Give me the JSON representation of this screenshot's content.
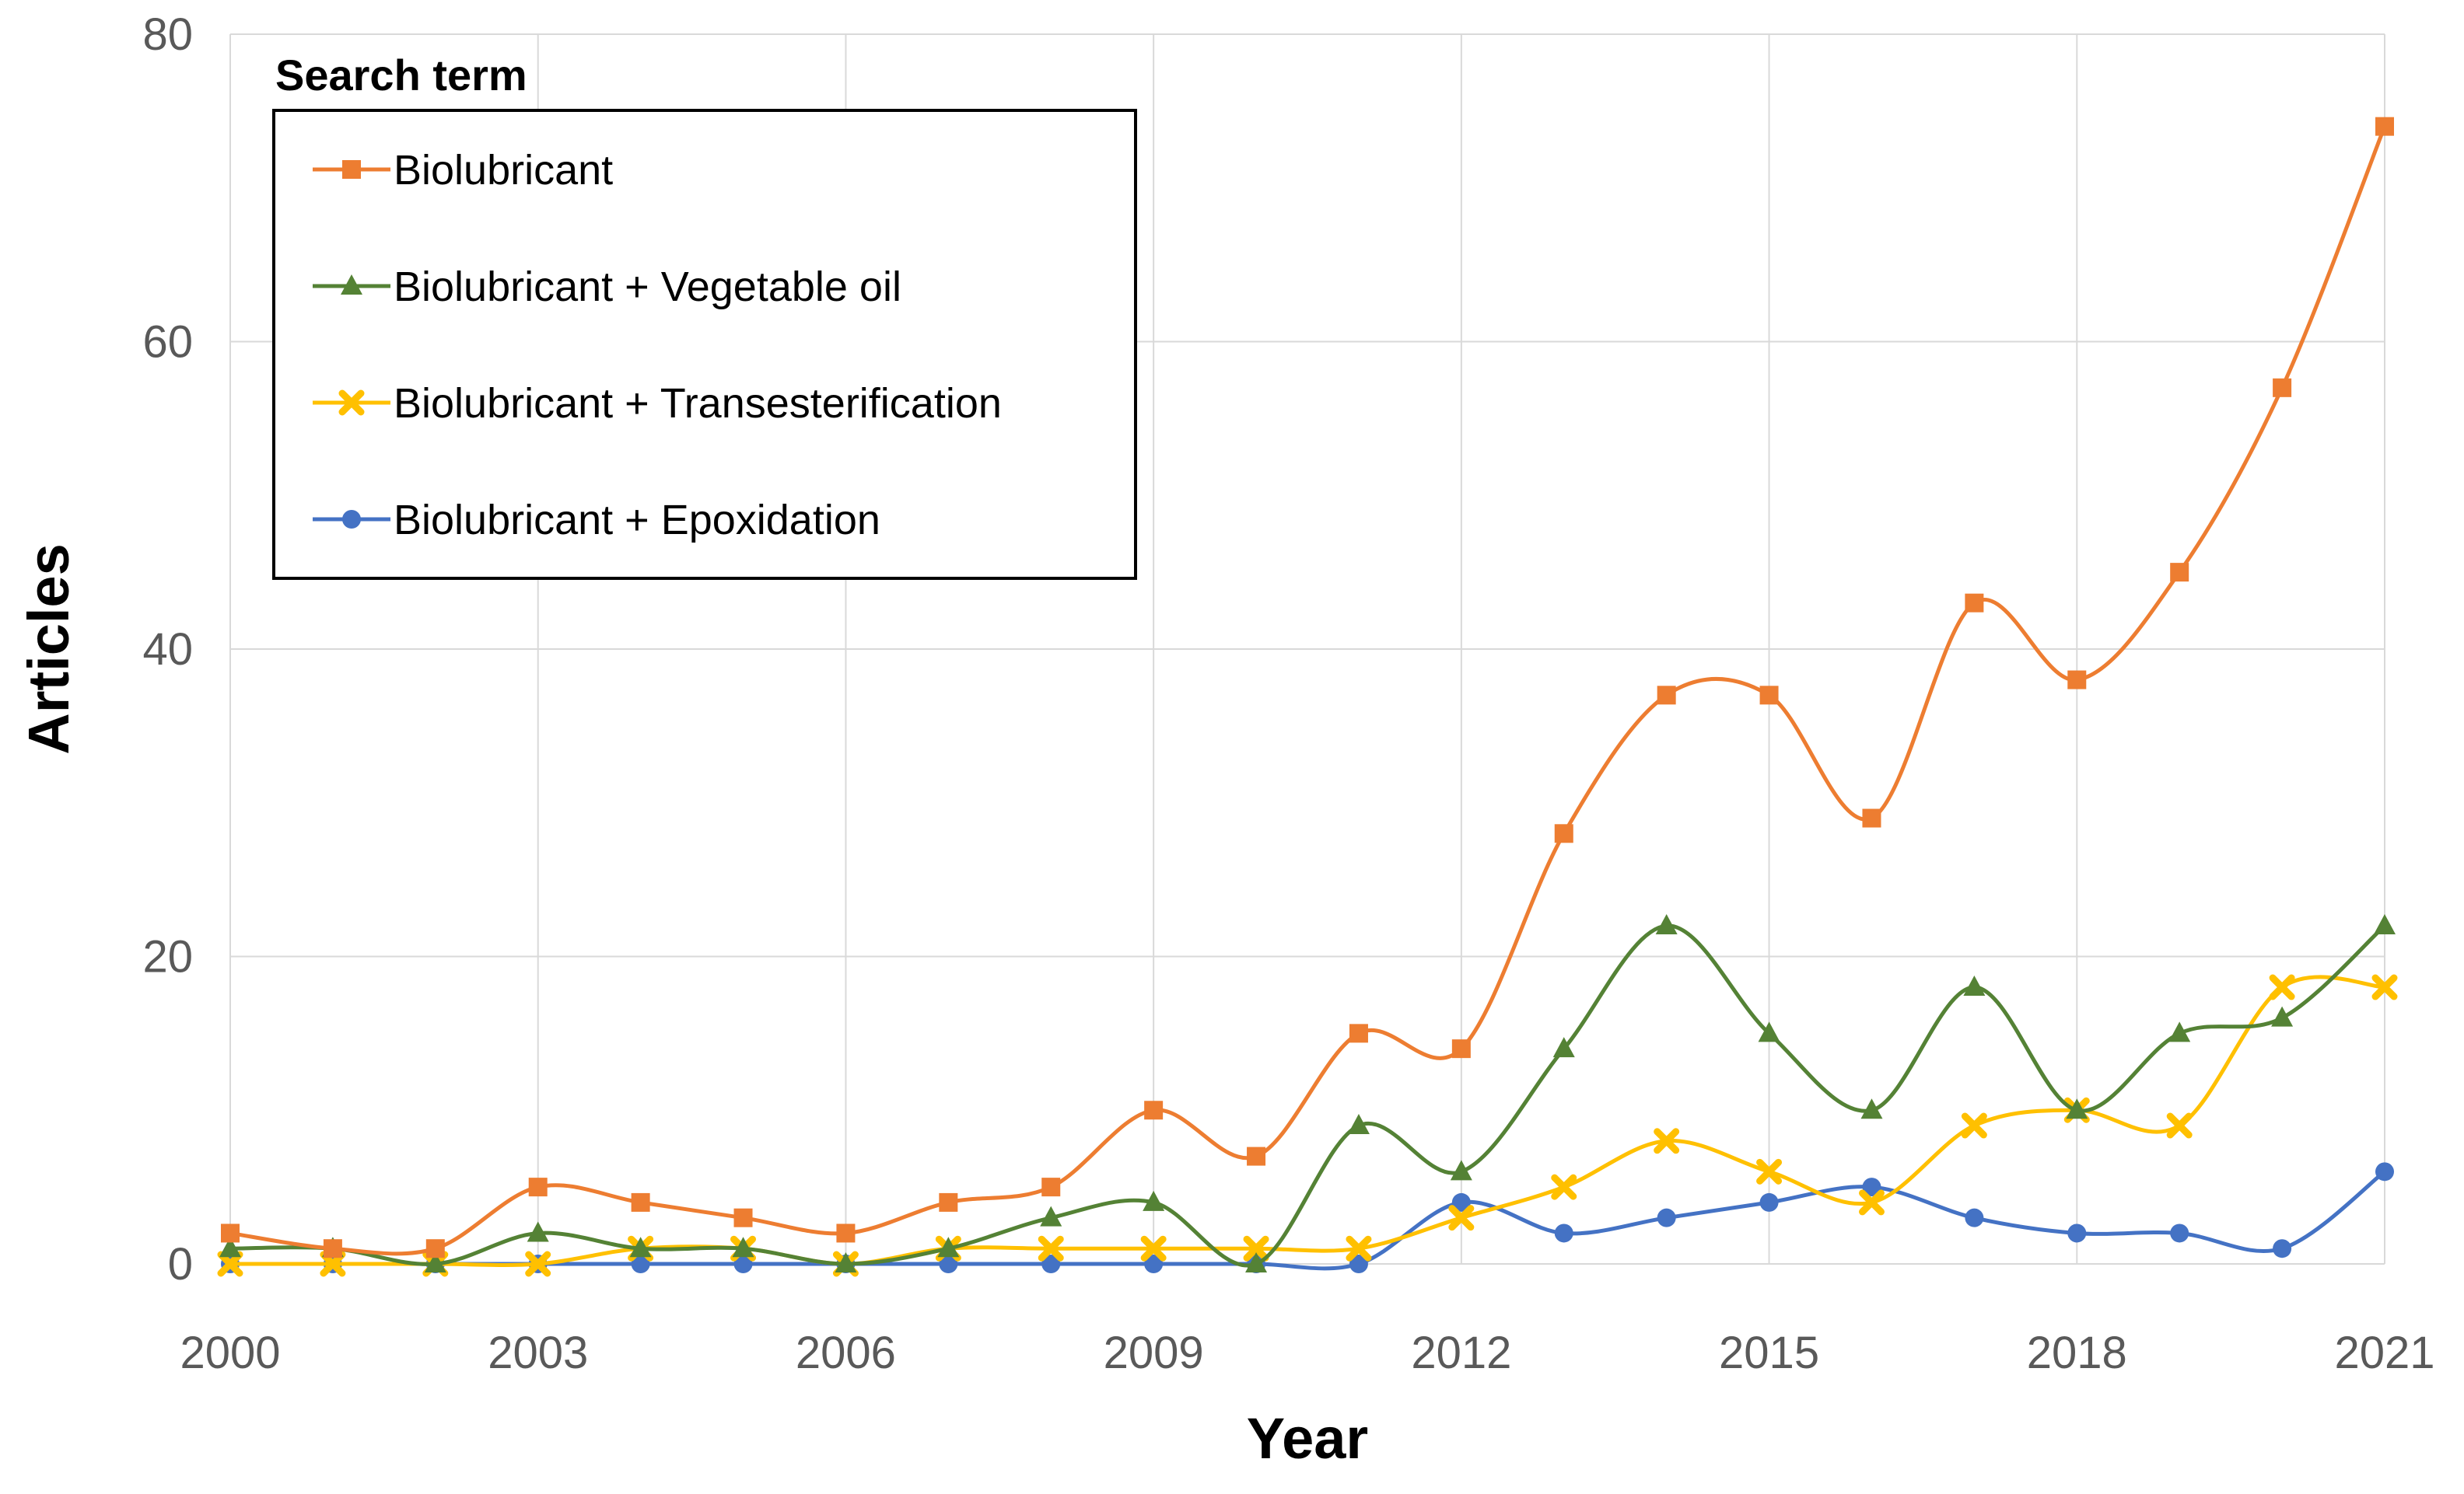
{
  "chart_data": {
    "type": "line",
    "smoothed": true,
    "x": [
      2000,
      2001,
      2002,
      2003,
      2004,
      2005,
      2006,
      2007,
      2008,
      2009,
      2010,
      2011,
      2012,
      2013,
      2014,
      2015,
      2016,
      2017,
      2018,
      2019,
      2020,
      2021
    ],
    "x_ticks": [
      "2000",
      "2003",
      "2006",
      "2009",
      "2012",
      "2015",
      "2018",
      "2021"
    ],
    "xlim": [
      2000,
      2021
    ],
    "y_ticks": [
      "0",
      "20",
      "40",
      "60",
      "80"
    ],
    "ylim": [
      0,
      80
    ],
    "xlabel": "Year",
    "ylabel": "Articles",
    "grid": true,
    "legend": {
      "title": "Search term",
      "position": "top-left"
    },
    "series": [
      {
        "name": "Biolubricant",
        "color": "#ED7D31",
        "marker": "square",
        "values": [
          2,
          1,
          1,
          5,
          4,
          3,
          2,
          4,
          5,
          10,
          7,
          15,
          14,
          28,
          37,
          37,
          29,
          43,
          38,
          45,
          57,
          74
        ]
      },
      {
        "name": "Biolubricant + Vegetable oil",
        "color": "#548235",
        "marker": "triangle",
        "values": [
          1,
          1,
          0,
          2,
          1,
          1,
          0,
          1,
          3,
          4,
          0,
          9,
          6,
          14,
          22,
          15,
          10,
          18,
          10,
          15,
          16,
          22
        ]
      },
      {
        "name": "Biolubricant + Transesterification",
        "color": "#FFC000",
        "marker": "x",
        "values": [
          0,
          0,
          0,
          0,
          1,
          1,
          0,
          1,
          1,
          1,
          1,
          1,
          3,
          5,
          8,
          6,
          4,
          9,
          10,
          9,
          18,
          18
        ]
      },
      {
        "name": "Biolubricant + Epoxidation",
        "color": "#4472C4",
        "marker": "circle",
        "values": [
          0,
          0,
          0,
          0,
          0,
          0,
          0,
          0,
          0,
          0,
          0,
          0,
          4,
          2,
          3,
          4,
          5,
          3,
          2,
          2,
          1,
          6
        ]
      }
    ]
  }
}
